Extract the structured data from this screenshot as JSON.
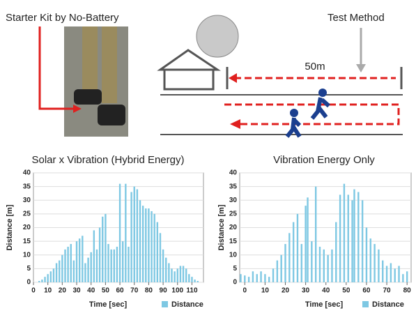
{
  "illustration": {
    "kit_label": "Starter Kit by No-Battery",
    "method_label": "Test Method",
    "distance_label": "50m"
  },
  "chart_data": [
    {
      "type": "bar",
      "title": "Solar x Vibration (Hybrid Energy)",
      "x_label": "Time [sec]",
      "y_label": "Distance [m]",
      "xlim": [
        0,
        118
      ],
      "xticks": [
        0,
        10,
        20,
        30,
        40,
        50,
        60,
        70,
        80,
        90,
        100,
        110
      ],
      "ylim": [
        0,
        40
      ],
      "yticks": [
        0,
        5,
        10,
        15,
        20,
        25,
        30,
        35,
        40
      ],
      "grid": true,
      "series": [
        {
          "name": "Distance",
          "color": "#7ec8e3",
          "x": [
            4,
            6,
            8,
            10,
            12,
            14,
            16,
            18,
            20,
            22,
            24,
            26,
            28,
            30,
            32,
            34,
            36,
            38,
            40,
            42,
            44,
            46,
            48,
            50,
            52,
            54,
            56,
            58,
            60,
            62,
            64,
            66,
            68,
            70,
            72,
            74,
            76,
            78,
            80,
            82,
            84,
            86,
            88,
            90,
            92,
            94,
            96,
            98,
            100,
            102,
            104,
            106,
            108,
            110,
            112,
            114
          ],
          "values": [
            0.5,
            1,
            2,
            3,
            4,
            5,
            7,
            8,
            10,
            12,
            13,
            14,
            8,
            15,
            16,
            17,
            7,
            9,
            11,
            19,
            12,
            20,
            24,
            25,
            14,
            12,
            12,
            13,
            36,
            15,
            36,
            13,
            33,
            35,
            34,
            30,
            28,
            27,
            27,
            26,
            25,
            22,
            18,
            12,
            9,
            7,
            5,
            4,
            5,
            6,
            6,
            5,
            3,
            2,
            1,
            0.5
          ]
        }
      ]
    },
    {
      "type": "bar",
      "title": "Vibration Energy Only",
      "x_label": "Time [sec]",
      "y_label": "Distance [m]",
      "xlim": [
        -2.5,
        82
      ],
      "xticks": [
        0,
        10,
        20,
        30,
        40,
        50,
        60,
        70,
        80
      ],
      "ylim": [
        0,
        40
      ],
      "yticks": [
        0,
        5,
        10,
        15,
        20,
        25,
        30,
        35,
        40
      ],
      "grid": true,
      "series": [
        {
          "name": "Distance",
          "color": "#7ec8e3",
          "x": [
            -2,
            0,
            2,
            4,
            6,
            8,
            10,
            12,
            14,
            16,
            18,
            20,
            22,
            24,
            26,
            28,
            30,
            31,
            33,
            35,
            37,
            39,
            41,
            43,
            45,
            47,
            49,
            51,
            53,
            54,
            56,
            58,
            60,
            62,
            64,
            66,
            68,
            70,
            72,
            74,
            76,
            78,
            80
          ],
          "values": [
            3,
            2.5,
            2,
            4,
            3,
            4,
            3,
            2,
            5,
            8,
            10,
            14,
            18,
            22,
            25,
            14,
            28,
            31,
            15,
            35,
            13,
            12,
            10,
            12,
            22,
            32,
            36,
            32,
            30,
            34,
            33,
            30,
            20,
            16,
            14,
            12,
            8,
            6,
            7,
            5,
            6,
            3,
            4
          ]
        }
      ]
    }
  ]
}
